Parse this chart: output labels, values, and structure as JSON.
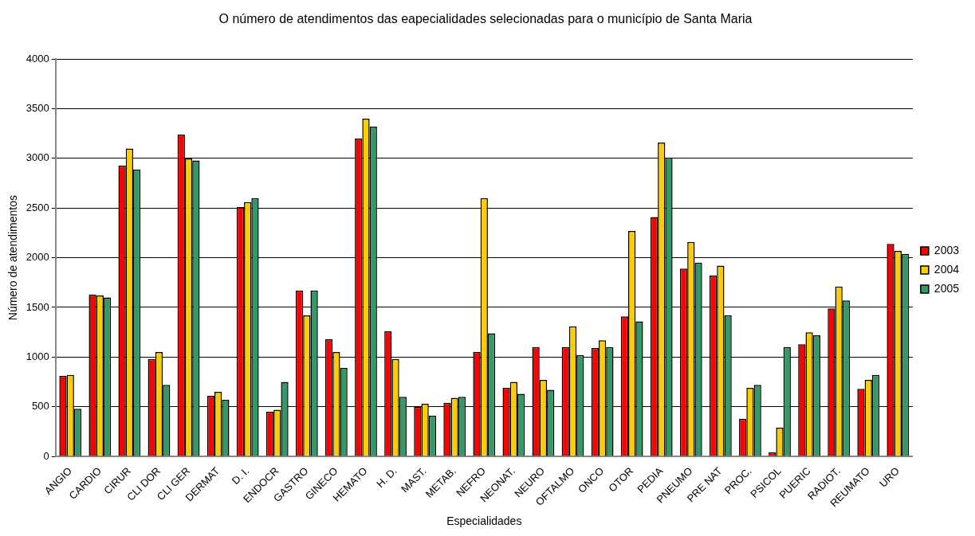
{
  "chart_data": {
    "type": "bar",
    "title": "O número de atendimentos das eapecialidades selecionadas para o município de Santa Maria",
    "xlabel": "Especialidades",
    "ylabel": "Número de atendimentos",
    "categories": [
      "ANGIO",
      "CARDIO",
      "CIRUR",
      "CLI DOR",
      "CLI GER",
      "DERMAT",
      "D. I.",
      "ENDOCR",
      "GASTRO",
      "GINECO",
      "HEMATO",
      "H. D.",
      "MAST.",
      "METAB.",
      "NEFRO",
      "NEONAT.",
      "NEURO",
      "OFTALMO",
      "ONCO",
      "OTOR",
      "PEDIA",
      "PNEUMO",
      "PRE NAT",
      "PROC.",
      "PSICOL",
      "PUERIC",
      "RADIOT.",
      "REUMATO",
      "URO"
    ],
    "series": [
      {
        "name": "2003",
        "color": "#ff0000",
        "values": [
          810,
          1630,
          2930,
          980,
          3240,
          610,
          2510,
          450,
          1670,
          1180,
          3200,
          1260,
          500,
          540,
          1050,
          690,
          1100,
          1100,
          1090,
          1410,
          2410,
          1890,
          1820,
          380,
          40,
          1130,
          1490,
          680,
          2140
        ]
      },
      {
        "name": "2004",
        "color": "#ffcc00",
        "values": [
          820,
          1620,
          3100,
          1050,
          3000,
          650,
          2560,
          470,
          1420,
          1050,
          3400,
          980,
          530,
          590,
          2600,
          750,
          770,
          1310,
          1170,
          2270,
          3160,
          2160,
          1920,
          690,
          290,
          1250,
          1710,
          770,
          2070
        ]
      },
      {
        "name": "2005",
        "color": "#339966",
        "values": [
          480,
          1600,
          2890,
          720,
          2980,
          570,
          2600,
          750,
          1670,
          890,
          3320,
          600,
          410,
          600,
          1240,
          630,
          670,
          1020,
          1100,
          1360,
          3010,
          1950,
          1420,
          720,
          1100,
          1220,
          1570,
          820,
          2040
        ]
      }
    ],
    "ylim": [
      0,
      4000
    ],
    "yticks": [
      0,
      500,
      1000,
      1500,
      2000,
      2500,
      3000,
      3500,
      4000
    ],
    "grid": "y",
    "legend": "right"
  }
}
